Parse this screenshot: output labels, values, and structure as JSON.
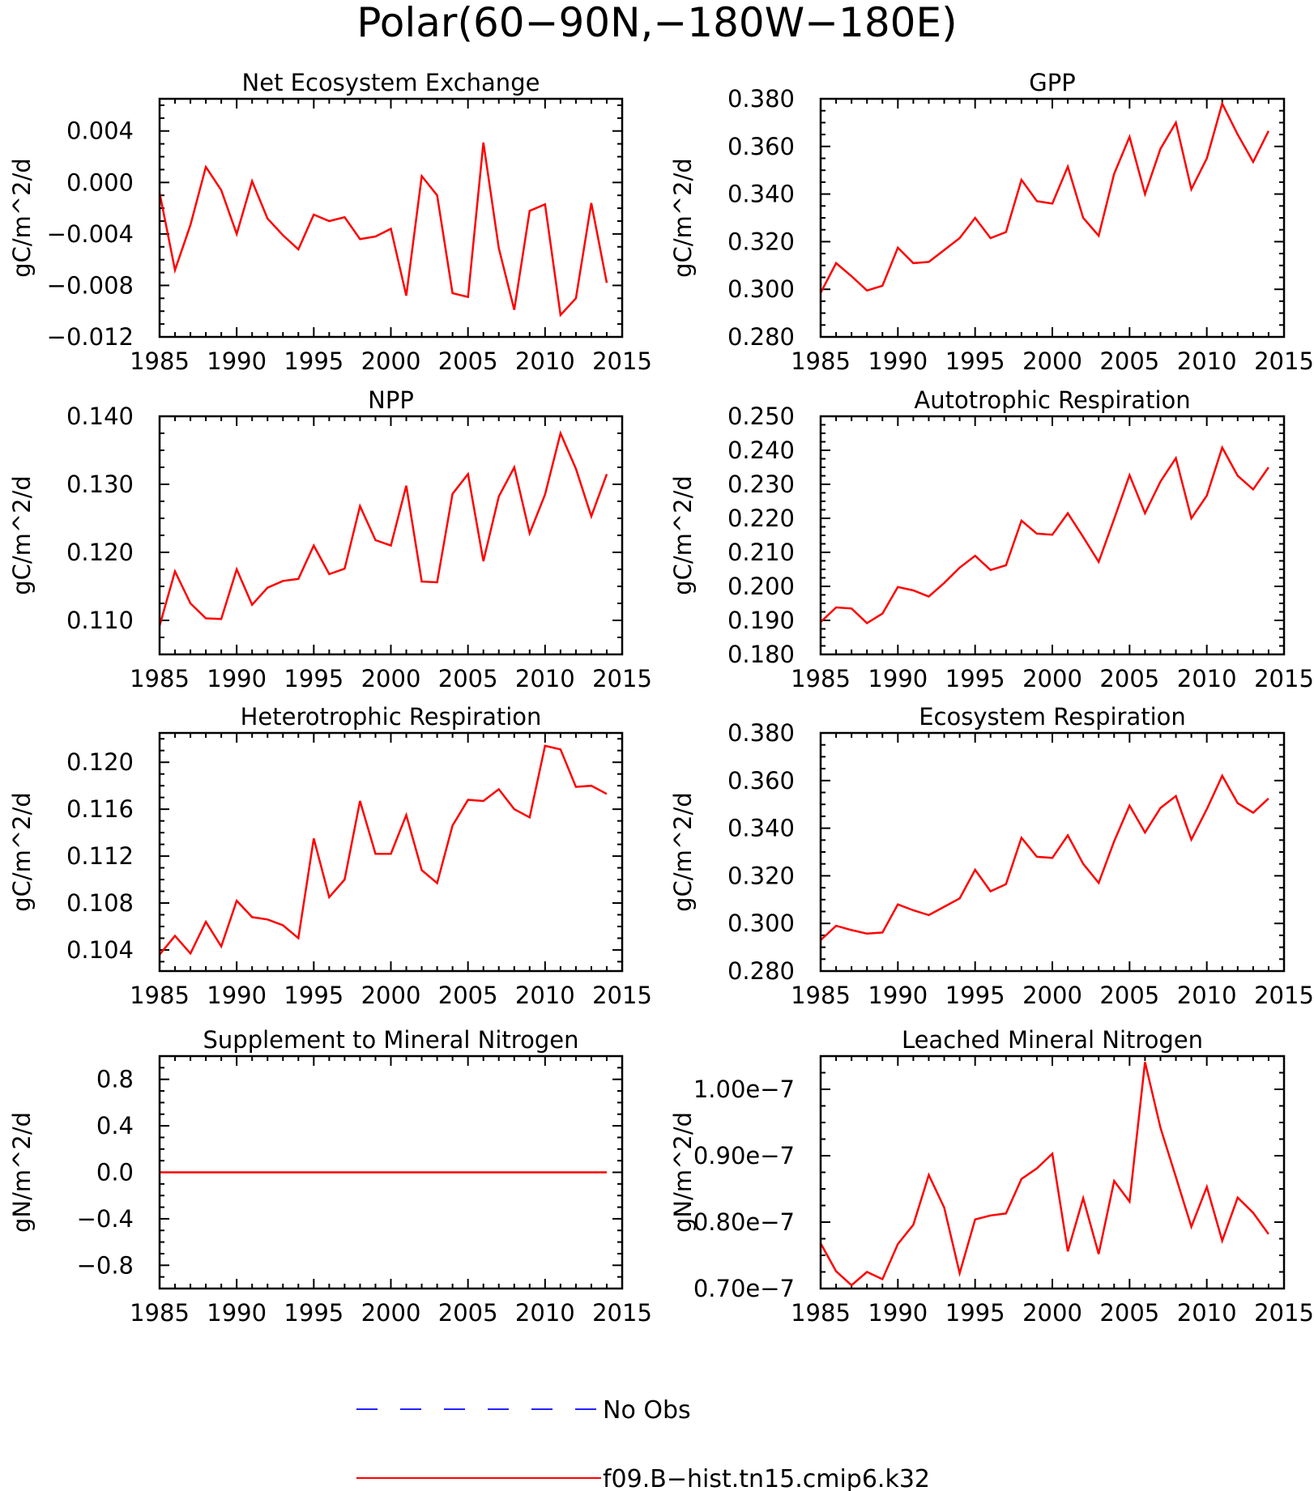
{
  "figure_title": "Polar(60−90N,−180W−180E)",
  "legend": {
    "obs_label": "No Obs",
    "model_label": "f09.B−hist.tn15.cmip6.k32",
    "obs_color": "#2222ff",
    "model_color": "#ff0000"
  },
  "chart_data": [
    {
      "type": "line",
      "title": "Net Ecosystem Exchange",
      "ylabel": "gC/m^2/d",
      "xlim": [
        1985,
        2015
      ],
      "ylim": [
        -0.012,
        0.0065
      ],
      "yticks": [
        -0.012,
        -0.008,
        -0.004,
        0.0,
        0.004
      ],
      "ytick_labels": [
        "−0.012",
        "−0.008",
        "−0.004",
        "0.000",
        "0.004"
      ],
      "xticks": [
        1985,
        1990,
        1995,
        2000,
        2005,
        2010,
        2015
      ],
      "series": [
        {
          "values": [
            -0.0008,
            -0.0068,
            -0.0033,
            0.0012,
            -0.0006,
            -0.004,
            0.0001,
            -0.0028,
            -0.0041,
            -0.0052,
            -0.0025,
            -0.003,
            -0.0027,
            -0.0044,
            -0.0042,
            -0.0036,
            -0.0088,
            0.0005,
            -0.001,
            -0.0086,
            -0.0089,
            0.0031,
            -0.0051,
            -0.0099,
            -0.0022,
            -0.0017,
            -0.0103,
            -0.009,
            -0.0016,
            -0.0078
          ]
        }
      ]
    },
    {
      "type": "line",
      "title": "GPP",
      "ylabel": "gC/m^2/d",
      "xlim": [
        1985,
        2015
      ],
      "ylim": [
        0.28,
        0.38
      ],
      "yticks": [
        0.28,
        0.3,
        0.32,
        0.34,
        0.36,
        0.38
      ],
      "ytick_labels": [
        "0.280",
        "0.300",
        "0.320",
        "0.340",
        "0.360",
        "0.380"
      ],
      "xticks": [
        1985,
        1990,
        1995,
        2000,
        2005,
        2010,
        2015
      ],
      "series": [
        {
          "values": [
            0.2985,
            0.311,
            0.3055,
            0.2995,
            0.3015,
            0.3175,
            0.311,
            0.3115,
            0.3165,
            0.3215,
            0.33,
            0.3215,
            0.324,
            0.346,
            0.337,
            0.336,
            0.3515,
            0.33,
            0.3225,
            0.3485,
            0.364,
            0.34,
            0.359,
            0.37,
            0.342,
            0.355,
            0.378,
            0.365,
            0.3535,
            0.3665
          ]
        }
      ]
    },
    {
      "type": "line",
      "title": "NPP",
      "ylabel": "gC/m^2/d",
      "xlim": [
        1985,
        2015
      ],
      "ylim": [
        0.105,
        0.14
      ],
      "yticks": [
        0.11,
        0.12,
        0.13,
        0.14
      ],
      "ytick_labels": [
        "0.110",
        "0.120",
        "0.130",
        "0.140"
      ],
      "xticks": [
        1985,
        1990,
        1995,
        2000,
        2005,
        2010,
        2015
      ],
      "series": [
        {
          "values": [
            0.1092,
            0.1172,
            0.1125,
            0.1103,
            0.1102,
            0.1175,
            0.1123,
            0.1148,
            0.1158,
            0.1161,
            0.121,
            0.1168,
            0.1176,
            0.1268,
            0.1218,
            0.121,
            0.1298,
            0.1157,
            0.1156,
            0.1286,
            0.1315,
            0.1187,
            0.1282,
            0.1325,
            0.1228,
            0.1285,
            0.1375,
            0.1323,
            0.1253,
            0.1315
          ]
        }
      ]
    },
    {
      "type": "line",
      "title": "Autotrophic Respiration",
      "ylabel": "gC/m^2/d",
      "xlim": [
        1985,
        2015
      ],
      "ylim": [
        0.18,
        0.25
      ],
      "yticks": [
        0.18,
        0.19,
        0.2,
        0.21,
        0.22,
        0.23,
        0.24,
        0.25
      ],
      "ytick_labels": [
        "0.180",
        "0.190",
        "0.200",
        "0.210",
        "0.220",
        "0.230",
        "0.240",
        "0.250"
      ],
      "xticks": [
        1985,
        1990,
        1995,
        2000,
        2005,
        2010,
        2015
      ],
      "series": [
        {
          "values": [
            0.1895,
            0.1938,
            0.1935,
            0.1892,
            0.192,
            0.1998,
            0.1988,
            0.197,
            0.201,
            0.2055,
            0.209,
            0.2048,
            0.2062,
            0.2193,
            0.2155,
            0.2152,
            0.2215,
            0.2145,
            0.2072,
            0.2198,
            0.2327,
            0.2215,
            0.2308,
            0.2377,
            0.22,
            0.2267,
            0.2408,
            0.2325,
            0.2285,
            0.235
          ]
        }
      ]
    },
    {
      "type": "line",
      "title": "Heterotrophic Respiration",
      "ylabel": "gC/m^2/d",
      "xlim": [
        1985,
        2015
      ],
      "ylim": [
        0.1022,
        0.1225
      ],
      "yticks": [
        0.104,
        0.108,
        0.112,
        0.116,
        0.12
      ],
      "ytick_labels": [
        "0.104",
        "0.108",
        "0.112",
        "0.116",
        "0.120"
      ],
      "xticks": [
        1985,
        1990,
        1995,
        2000,
        2005,
        2010,
        2015
      ],
      "series": [
        {
          "values": [
            0.1036,
            0.1052,
            0.1037,
            0.1064,
            0.1043,
            0.1082,
            0.1068,
            0.1066,
            0.1061,
            0.105,
            0.1135,
            0.1085,
            0.11,
            0.1167,
            0.1122,
            0.1122,
            0.1155,
            0.1108,
            0.1097,
            0.1146,
            0.1168,
            0.1167,
            0.1177,
            0.116,
            0.1153,
            0.1214,
            0.1211,
            0.1179,
            0.118,
            0.1173
          ]
        }
      ]
    },
    {
      "type": "line",
      "title": "Ecosystem Respiration",
      "ylabel": "gC/m^2/d",
      "xlim": [
        1985,
        2015
      ],
      "ylim": [
        0.28,
        0.38
      ],
      "yticks": [
        0.28,
        0.3,
        0.32,
        0.34,
        0.36,
        0.38
      ],
      "ytick_labels": [
        "0.280",
        "0.300",
        "0.320",
        "0.340",
        "0.360",
        "0.380"
      ],
      "xticks": [
        1985,
        1990,
        1995,
        2000,
        2005,
        2010,
        2015
      ],
      "series": [
        {
          "values": [
            0.293,
            0.299,
            0.2972,
            0.2957,
            0.2962,
            0.308,
            0.3055,
            0.3035,
            0.307,
            0.3105,
            0.3225,
            0.3135,
            0.3165,
            0.336,
            0.328,
            0.3275,
            0.337,
            0.325,
            0.317,
            0.3345,
            0.3495,
            0.3382,
            0.3485,
            0.3535,
            0.3352,
            0.348,
            0.362,
            0.3505,
            0.3465,
            0.3525
          ]
        }
      ]
    },
    {
      "type": "line",
      "title": "Supplement to Mineral Nitrogen",
      "ylabel": "gN/m^2/d",
      "xlim": [
        1985,
        2015
      ],
      "ylim": [
        -1.0,
        1.0
      ],
      "yticks": [
        -0.8,
        -0.4,
        0.0,
        0.4,
        0.8
      ],
      "ytick_labels": [
        "−0.8",
        "−0.4",
        "0.0",
        "0.4",
        "0.8"
      ],
      "xticks": [
        1985,
        1990,
        1995,
        2000,
        2005,
        2010,
        2015
      ],
      "series": [
        {
          "values": [
            0,
            0,
            0,
            0,
            0,
            0,
            0,
            0,
            0,
            0,
            0,
            0,
            0,
            0,
            0,
            0,
            0,
            0,
            0,
            0,
            0,
            0,
            0,
            0,
            0,
            0,
            0,
            0,
            0,
            0
          ]
        }
      ]
    },
    {
      "type": "line",
      "title": "Leached Mineral Nitrogen",
      "ylabel": "gN/m^2/d",
      "xlim": [
        1985,
        2015
      ],
      "ylim": [
        7e-08,
        1.05e-07
      ],
      "yticks": [
        7e-08,
        8e-08,
        9e-08,
        1e-07
      ],
      "ytick_labels": [
        "0.70e−7",
        "0.80e−7",
        "0.90e−7",
        "1.00e−7"
      ],
      "xticks": [
        1985,
        1990,
        1995,
        2000,
        2005,
        2010,
        2015
      ],
      "series": [
        {
          "values": [
            7.68e-08,
            7.26e-08,
            7.05e-08,
            7.25e-08,
            7.14e-08,
            7.67e-08,
            7.96e-08,
            8.71e-08,
            8.22e-08,
            7.23e-08,
            8.04e-08,
            8.1e-08,
            8.13e-08,
            8.65e-08,
            8.81e-08,
            9.03e-08,
            7.56e-08,
            8.36e-08,
            7.52e-08,
            8.62e-08,
            8.31e-08,
            1.041e-07,
            9.42e-08,
            8.68e-08,
            7.93e-08,
            8.53e-08,
            7.72e-08,
            8.37e-08,
            8.14e-08,
            7.82e-08
          ]
        }
      ]
    }
  ]
}
